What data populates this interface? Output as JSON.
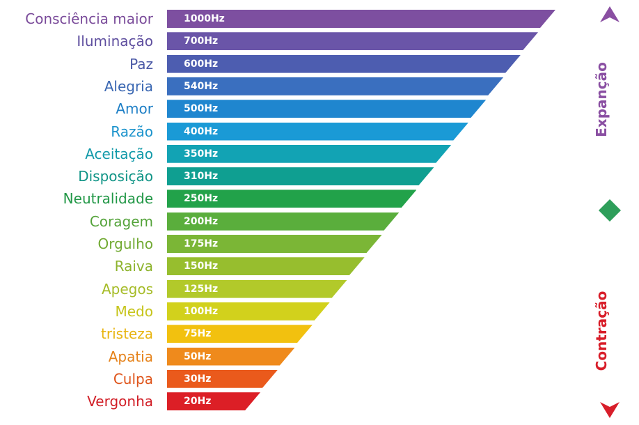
{
  "rows": [
    {
      "label": "Consciência maior",
      "value": "1000Hz",
      "color": "#7d4fa0",
      "label_color": "#7a4b9a"
    },
    {
      "label": "Iluminação",
      "value": "700Hz",
      "color": "#6a55a8",
      "label_color": "#5f4f9f"
    },
    {
      "label": "Paz",
      "value": "600Hz",
      "color": "#4d5db0",
      "label_color": "#4a58a6"
    },
    {
      "label": "Alegria",
      "value": "540Hz",
      "color": "#3a6fbf",
      "label_color": "#3a67b2"
    },
    {
      "label": "Amor",
      "value": "500Hz",
      "color": "#1f86cf",
      "label_color": "#1e7fc6"
    },
    {
      "label": "Razão",
      "value": "400Hz",
      "color": "#1a9ad6",
      "label_color": "#1b93cc"
    },
    {
      "label": "Aceitação",
      "value": "350Hz",
      "color": "#12a3b4",
      "label_color": "#129aa9"
    },
    {
      "label": "Disposição",
      "value": "310Hz",
      "color": "#0f9f91",
      "label_color": "#109486"
    },
    {
      "label": "Neutralidade",
      "value": "250Hz",
      "color": "#22a24a",
      "label_color": "#219746"
    },
    {
      "label": "Coragem",
      "value": "200Hz",
      "color": "#5aae3c",
      "label_color": "#54a33a"
    },
    {
      "label": "Orgulho",
      "value": "175Hz",
      "color": "#7bb636",
      "label_color": "#72aa33"
    },
    {
      "label": "Raiva",
      "value": "150Hz",
      "color": "#97be2e",
      "label_color": "#8db32c"
    },
    {
      "label": "Apegos",
      "value": "125Hz",
      "color": "#b2c92a",
      "label_color": "#a6bc28"
    },
    {
      "label": "Medo",
      "value": "100Hz",
      "color": "#d2d11c",
      "label_color": "#c6c41a"
    },
    {
      "label": "tristeza",
      "value": "75Hz",
      "color": "#f2c10f",
      "label_color": "#e8b40f"
    },
    {
      "label": "Apatia",
      "value": "50Hz",
      "color": "#ef8a1c",
      "label_color": "#e5821a"
    },
    {
      "label": "Culpa",
      "value": "30Hz",
      "color": "#ea5a1c",
      "label_color": "#df541a"
    },
    {
      "label": "Vergonha",
      "value": "20Hz",
      "color": "#dc1f26",
      "label_color": "#d11e26"
    }
  ],
  "axis": {
    "top_label": "Expanção",
    "bottom_label": "Contração",
    "top_color": "#8a4fa2",
    "bottom_color": "#d81e2a",
    "middle_color": "#2e9e5a",
    "diamond_icon": "diamond-icon",
    "up_arrow_icon": "arrow-up-icon",
    "down_arrow_icon": "arrow-down-icon"
  }
}
